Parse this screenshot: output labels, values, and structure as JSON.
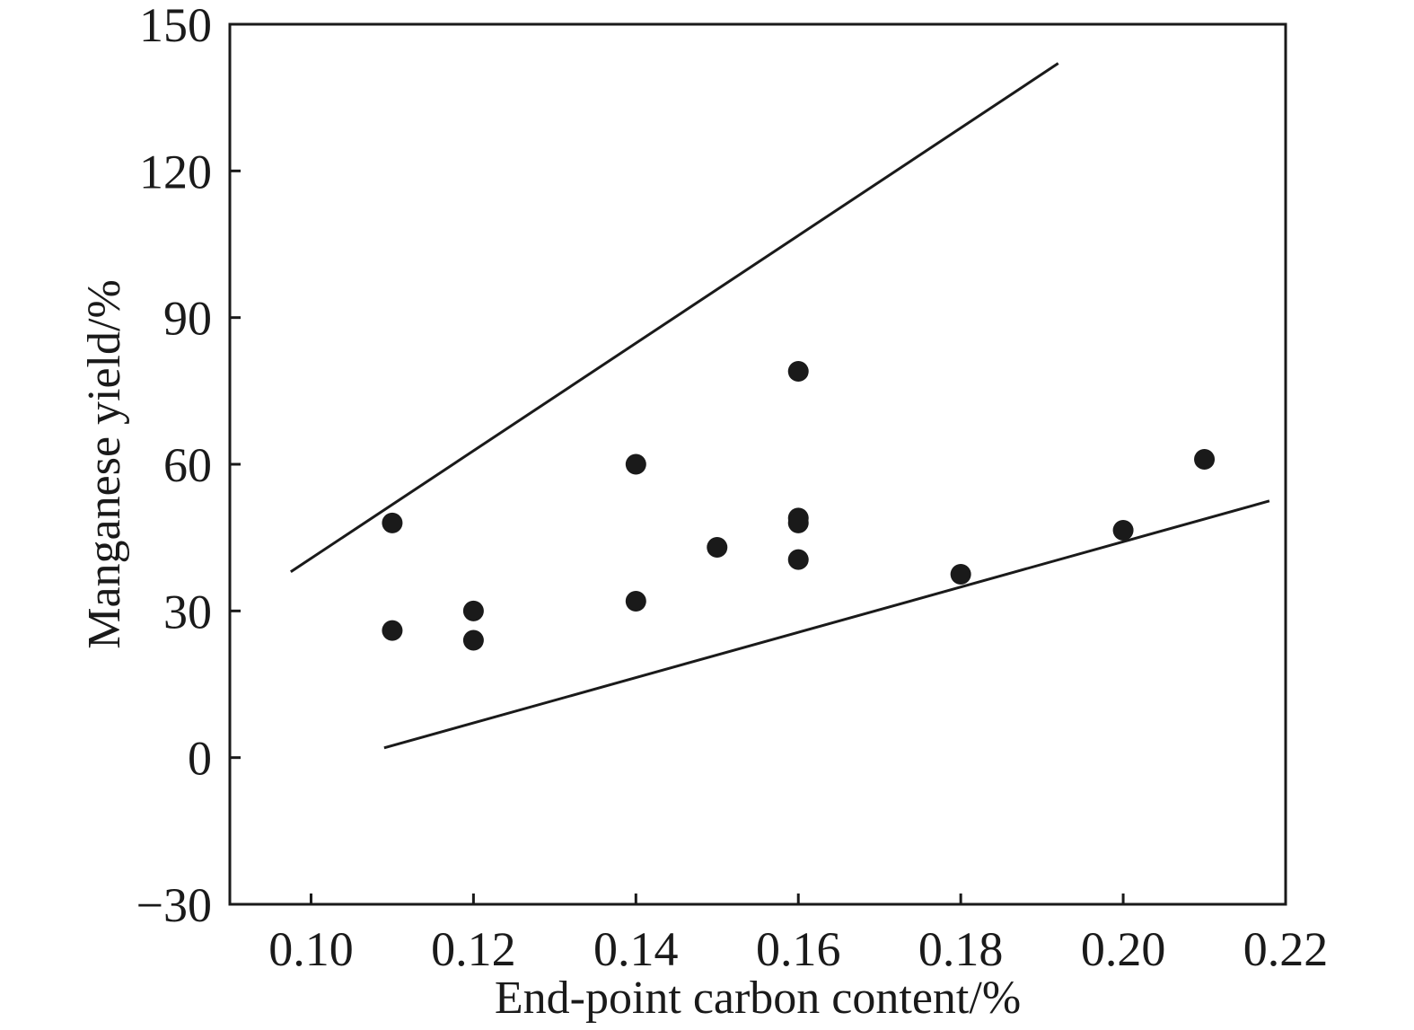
{
  "chart_data": {
    "type": "scatter",
    "title": "",
    "xlabel": "End-point carbon content/%",
    "ylabel": "Manganese yield/%",
    "xlim": [
      0.09,
      0.22
    ],
    "ylim": [
      -30,
      150
    ],
    "xticks": [
      "0.10",
      "0.12",
      "0.14",
      "0.16",
      "0.18",
      "0.20",
      "0.22"
    ],
    "yticks": [
      "−30",
      "0",
      "30",
      "60",
      "90",
      "120",
      "150"
    ],
    "grid": false,
    "points": [
      {
        "x": 0.11,
        "y": 48
      },
      {
        "x": 0.11,
        "y": 26
      },
      {
        "x": 0.12,
        "y": 30
      },
      {
        "x": 0.12,
        "y": 24
      },
      {
        "x": 0.14,
        "y": 60
      },
      {
        "x": 0.14,
        "y": 32
      },
      {
        "x": 0.15,
        "y": 43
      },
      {
        "x": 0.16,
        "y": 79
      },
      {
        "x": 0.16,
        "y": 49
      },
      {
        "x": 0.16,
        "y": 48
      },
      {
        "x": 0.16,
        "y": 40.5
      },
      {
        "x": 0.18,
        "y": 37.5
      },
      {
        "x": 0.2,
        "y": 46.5
      },
      {
        "x": 0.21,
        "y": 61
      }
    ],
    "lines": [
      {
        "x": [
          0.0975,
          0.192
        ],
        "y": [
          38,
          142
        ]
      },
      {
        "x": 0.109,
        "y": [
          2,
          52.5
        ],
        "x_end": 0.218
      }
    ],
    "colors": {
      "marker": "#1a1a1a",
      "line": "#1a1a1a",
      "axis": "#1a1a1a"
    }
  }
}
